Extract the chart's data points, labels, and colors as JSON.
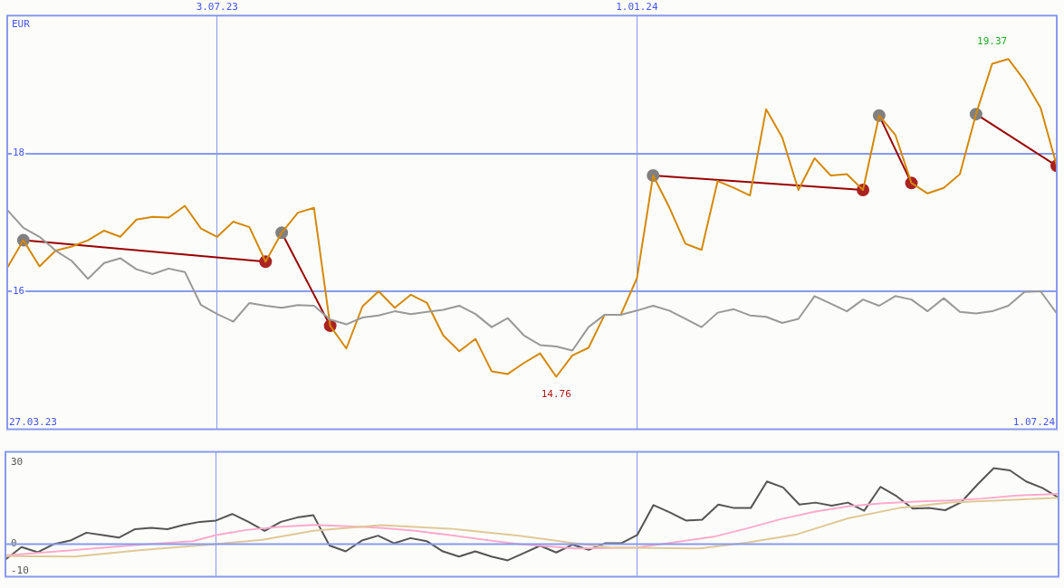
{
  "chart_data": [
    {
      "type": "line",
      "ylabel": "EUR",
      "annotations": [
        "27.03.23",
        "1.07.24",
        {
          "text": "19.37",
          "x": "2024-06-03",
          "y": 19.37
        },
        {
          "text": "14.76",
          "x": "2023-11-27",
          "y": 14.76
        }
      ],
      "x": [
        "2023-04-03",
        "2023-04-10",
        "2023-04-17",
        "2023-04-24",
        "2023-05-01",
        "2023-05-08",
        "2023-05-15",
        "2023-05-22",
        "2023-05-29",
        "2023-06-05",
        "2023-06-12",
        "2023-06-19",
        "2023-06-26",
        "2023-07-03",
        "2023-07-10",
        "2023-07-17",
        "2023-07-24",
        "2023-07-31",
        "2023-08-07",
        "2023-08-14",
        "2023-08-21",
        "2023-08-28",
        "2023-09-04",
        "2023-09-11",
        "2023-09-18",
        "2023-09-25",
        "2023-10-02",
        "2023-10-09",
        "2023-10-16",
        "2023-10-23",
        "2023-10-30",
        "2023-11-06",
        "2023-11-13",
        "2023-11-20",
        "2023-11-27",
        "2023-12-04",
        "2023-12-11",
        "2023-12-18",
        "2023-12-25",
        "2024-01-01",
        "2024-01-08",
        "2024-01-15",
        "2024-01-22",
        "2024-01-29",
        "2024-02-05",
        "2024-02-12",
        "2024-02-19",
        "2024-02-26",
        "2024-03-04",
        "2024-03-11",
        "2024-03-18",
        "2024-03-25",
        "2024-04-01",
        "2024-04-08",
        "2024-04-15",
        "2024-04-22",
        "2024-04-29",
        "2024-05-06",
        "2024-05-13",
        "2024-05-20",
        "2024-05-27",
        "2024-06-03",
        "2024-06-10",
        "2024-06-17",
        "2024-06-24",
        "2024-07-01"
      ],
      "xlim": [
        "2023-04-03",
        "2024-07-01"
      ],
      "xticks": [
        {
          "value": "2023-07-03",
          "label": "3.07.23"
        },
        {
          "value": "2024-01-01",
          "label": "1.01.24"
        }
      ],
      "ylim": [
        14,
        20
      ],
      "yticks": [
        16,
        18
      ],
      "grid": true,
      "legend": false,
      "series": [
        {
          "color": "#999999",
          "values": [
            17.18,
            16.92,
            16.79,
            16.59,
            16.44,
            16.18,
            16.41,
            16.48,
            16.32,
            16.25,
            16.33,
            16.28,
            15.8,
            15.67,
            15.56,
            15.83,
            15.79,
            15.76,
            15.8,
            15.79,
            15.59,
            15.52,
            15.62,
            15.65,
            15.71,
            15.67,
            15.7,
            15.73,
            15.79,
            15.67,
            15.48,
            15.61,
            15.36,
            15.22,
            15.2,
            15.14,
            15.48,
            15.66,
            15.66,
            15.72,
            15.79,
            15.72,
            15.6,
            15.48,
            15.69,
            15.74,
            15.65,
            15.63,
            15.54,
            15.6,
            15.93,
            15.82,
            15.71,
            15.88,
            15.79,
            15.93,
            15.88,
            15.71,
            15.9,
            15.7,
            15.68,
            15.71,
            15.79,
            15.99,
            16.0,
            15.68
          ]
        },
        {
          "color": "#d4880a",
          "values": [
            16.34,
            16.74,
            16.36,
            16.59,
            16.65,
            16.74,
            16.88,
            16.79,
            17.04,
            17.08,
            17.07,
            17.24,
            16.91,
            16.79,
            17.01,
            16.93,
            16.43,
            16.85,
            17.14,
            17.21,
            15.5,
            15.17,
            15.78,
            16.0,
            15.76,
            15.95,
            15.83,
            15.36,
            15.13,
            15.31,
            14.84,
            14.8,
            14.96,
            15.1,
            14.76,
            15.07,
            15.18,
            15.66,
            15.66,
            16.19,
            17.68,
            17.22,
            16.69,
            16.6,
            17.6,
            17.5,
            17.39,
            18.64,
            18.23,
            17.47,
            17.93,
            17.68,
            17.7,
            17.47,
            18.55,
            18.27,
            17.57,
            17.42,
            17.5,
            17.7,
            18.57,
            19.3,
            19.37,
            19.06,
            18.66,
            17.82
          ]
        },
        {
          "color": "#990000",
          "marker": "circle",
          "colors": [
            "#808080",
            "#aa2222"
          ],
          "x": [
            "2023-04-10",
            "2023-07-24"
          ],
          "values": [
            16.74,
            16.43
          ]
        },
        {
          "color": "#990000",
          "marker": "circle",
          "colors": [
            "#808080",
            "#aa2222"
          ],
          "x": [
            "2023-07-31",
            "2023-08-21"
          ],
          "values": [
            16.85,
            15.5
          ]
        },
        {
          "color": "#990000",
          "marker": "circle",
          "colors": [
            "#808080",
            "#aa2222"
          ],
          "x": [
            "2024-01-08",
            "2024-04-08"
          ],
          "values": [
            17.68,
            17.47
          ]
        },
        {
          "color": "#990000",
          "marker": "circle",
          "colors": [
            "#808080",
            "#aa2222"
          ],
          "x": [
            "2024-04-15",
            "2024-04-29"
          ],
          "values": [
            18.55,
            17.57
          ]
        },
        {
          "color": "#990000",
          "marker": "circle",
          "colors": [
            "#808080",
            "#aa2222"
          ],
          "x": [
            "2024-05-27",
            "2024-07-01"
          ],
          "values": [
            18.57,
            17.82
          ]
        }
      ]
    },
    {
      "type": "line",
      "xlim": [
        "2023-04-03",
        "2024-07-01"
      ],
      "xticks": [
        {
          "value": "2023-07-03",
          "label": null
        },
        {
          "value": "2024-01-01",
          "label": null
        }
      ],
      "tick_labels": "y",
      "ylim": [
        -12,
        34
      ],
      "yticks": [
        30,
        0,
        -10
      ],
      "grid": "x",
      "legend": false,
      "ref_lines": [
        {
          "axis": "y",
          "value": 0,
          "color": "#8899ee"
        }
      ],
      "x": [
        "2023-04-03",
        "2023-04-10",
        "2023-04-17",
        "2023-04-24",
        "2023-05-01",
        "2023-05-08",
        "2023-05-15",
        "2023-05-22",
        "2023-05-29",
        "2023-06-05",
        "2023-06-12",
        "2023-06-19",
        "2023-06-26",
        "2023-07-03",
        "2023-07-10",
        "2023-07-17",
        "2023-07-24",
        "2023-07-31",
        "2023-08-07",
        "2023-08-14",
        "2023-08-21",
        "2023-08-28",
        "2023-09-04",
        "2023-09-11",
        "2023-09-18",
        "2023-09-25",
        "2023-10-02",
        "2023-10-09",
        "2023-10-16",
        "2023-10-23",
        "2023-10-30",
        "2023-11-06",
        "2023-11-13",
        "2023-11-20",
        "2023-11-27",
        "2023-12-04",
        "2023-12-11",
        "2023-12-18",
        "2023-12-25",
        "2024-01-01",
        "2024-01-08",
        "2024-01-15",
        "2024-01-22",
        "2024-01-29",
        "2024-02-05",
        "2024-02-12",
        "2024-02-19",
        "2024-02-26",
        "2024-03-04",
        "2024-03-11",
        "2024-03-18",
        "2024-03-25",
        "2024-04-01",
        "2024-04-08",
        "2024-04-15",
        "2024-04-22",
        "2024-04-29",
        "2024-05-06",
        "2024-05-13",
        "2024-05-20",
        "2024-05-27",
        "2024-06-03",
        "2024-06-10",
        "2024-06-17",
        "2024-06-24",
        "2024-07-01"
      ],
      "series": [
        {
          "color": "#e0c898",
          "x": [
            "2023-04-03",
            "2023-05-03",
            "2023-06-01",
            "2023-07-03",
            "2023-07-23",
            "2023-08-14",
            "2023-09-12",
            "2023-10-12",
            "2023-11-11",
            "2023-12-05",
            "2023-12-20",
            "2024-01-28",
            "2024-02-17",
            "2024-03-10",
            "2024-04-01",
            "2024-04-23",
            "2024-05-15",
            "2024-06-05",
            "2024-07-01"
          ],
          "values": [
            -4.4,
            -4.6,
            -2.2,
            0,
            1.6,
            4.9,
            7.0,
            5.7,
            3.1,
            0.3,
            -1.3,
            -1.6,
            0.5,
            3.6,
            9.5,
            13.3,
            15.3,
            16.1,
            17.1
          ]
        },
        {
          "color": "#ffaacc",
          "x": [
            "2023-04-03",
            "2023-05-03",
            "2023-06-01",
            "2023-06-23",
            "2023-07-03",
            "2023-07-16",
            "2023-07-30",
            "2023-08-14",
            "2023-08-29",
            "2023-09-12",
            "2023-09-27",
            "2023-10-12",
            "2023-10-27",
            "2023-11-11",
            "2023-12-05",
            "2024-01-01",
            "2024-01-19",
            "2024-02-03",
            "2024-02-17",
            "2024-03-03",
            "2024-03-18",
            "2024-04-01",
            "2024-04-15",
            "2024-04-30",
            "2024-05-15",
            "2024-05-29",
            "2024-06-13",
            "2024-07-01"
          ],
          "values": [
            -4.2,
            -2.2,
            -0.2,
            1.1,
            3.3,
            5.2,
            6.3,
            7.1,
            6.6,
            6.0,
            4.9,
            3.3,
            1.6,
            0,
            -1.6,
            -1.3,
            0.9,
            2.7,
            5.7,
            9.2,
            12.0,
            13.9,
            15.0,
            15.7,
            16.1,
            16.8,
            17.9,
            18.5
          ]
        },
        {
          "color": "#555555",
          "values": [
            -5.7,
            -1.1,
            -3.0,
            0,
            1.3,
            4.2,
            3.3,
            2.4,
            5.5,
            6.0,
            5.5,
            7.1,
            8.2,
            8.7,
            11.1,
            8.2,
            4.9,
            8.2,
            9.8,
            10.7,
            -0.5,
            -2.7,
            1.3,
            3.1,
            0.3,
            2.2,
            1.1,
            -2.7,
            -4.6,
            -2.7,
            -4.6,
            -6.0,
            -3.3,
            -0.6,
            -3.1,
            -0.2,
            -2.1,
            0.3,
            0.3,
            3.4,
            14.4,
            11.7,
            8.7,
            9.0,
            14.6,
            13.3,
            13.3,
            23.1,
            20.9,
            14.6,
            15.3,
            14.2,
            15.3,
            12.3,
            21.1,
            17.7,
            13.1,
            13.3,
            12.5,
            15.5,
            22.0,
            28.0,
            27.2,
            23.1,
            20.7,
            17.1
          ]
        }
      ]
    }
  ]
}
